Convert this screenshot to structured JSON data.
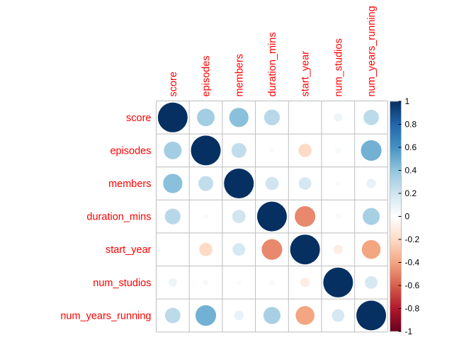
{
  "chart_data": {
    "type": "heatmap",
    "variables": [
      "score",
      "episodes",
      "members",
      "duration_mins",
      "start_year",
      "num_studios",
      "num_years_running"
    ],
    "matrix": [
      [
        1.0,
        0.35,
        0.42,
        0.28,
        0.0,
        0.08,
        0.27
      ],
      [
        0.35,
        1.0,
        0.25,
        0.03,
        -0.2,
        0.04,
        0.48
      ],
      [
        0.42,
        0.25,
        1.0,
        0.2,
        0.18,
        0.03,
        0.1
      ],
      [
        0.28,
        0.03,
        0.2,
        1.0,
        -0.48,
        0.04,
        0.33
      ],
      [
        0.0,
        -0.2,
        0.18,
        -0.48,
        1.0,
        -0.1,
        -0.4
      ],
      [
        0.08,
        0.04,
        0.03,
        0.04,
        -0.1,
        1.0,
        0.18
      ],
      [
        0.27,
        0.48,
        0.1,
        0.33,
        -0.4,
        0.18,
        1.0
      ]
    ],
    "color_scale": {
      "range": [
        -1,
        1
      ],
      "ticks": [
        "1",
        "0.8",
        "0.6",
        "0.4",
        "0.2",
        "0",
        "-0.2",
        "-0.4",
        "-0.6",
        "-0.8",
        "-1"
      ],
      "stops": [
        "#67001F",
        "#B2182B",
        "#D6604D",
        "#F4A582",
        "#FDDBC7",
        "#FFFFFF",
        "#D1E5F0",
        "#92C5DE",
        "#4393C3",
        "#2166AC",
        "#053061"
      ]
    },
    "label_color": "#FF0000",
    "grid_color": "#BEBEBE"
  }
}
